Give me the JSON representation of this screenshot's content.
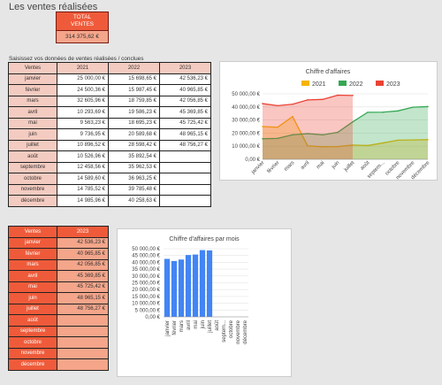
{
  "page": {
    "title": "Les ventes réalisées",
    "total_label_1": "TOTAL",
    "total_label_2": "VENTES",
    "total_value": "314 375,62 €",
    "subtitle": "Saisissez vos données de ventes réalisées / conclues"
  },
  "table1": {
    "headers": [
      "Ventes",
      "2021",
      "2022",
      "2023"
    ],
    "rows": [
      [
        "janvier",
        "25 000,00 €",
        "15 698,65 €",
        "42 536,23 €"
      ],
      [
        "février",
        "24 500,36 €",
        "15 987,45 €",
        "40 965,85 €"
      ],
      [
        "mars",
        "32 605,96 €",
        "18 759,85 €",
        "42 056,85 €"
      ],
      [
        "avril",
        "10 293,69 €",
        "19 586,23 €",
        "45 369,85 €"
      ],
      [
        "mai",
        "9 563,23 €",
        "18 695,23 €",
        "45 725,42 €"
      ],
      [
        "juin",
        "9 736,95 €",
        "20 589,68 €",
        "48 965,15 €"
      ],
      [
        "juillet",
        "10 896,52 €",
        "28 598,42 €",
        "48 756,27 €"
      ],
      [
        "août",
        "10 526,96 €",
        "35 892,54 €",
        ""
      ],
      [
        "septembre",
        "12 458,56 €",
        "35 962,53 €",
        ""
      ],
      [
        "octobre",
        "14 589,60 €",
        "36 963,25 €",
        ""
      ],
      [
        "novembre",
        "14 785,52 €",
        "39 785,48 €",
        ""
      ],
      [
        "décembre",
        "14 985,96 €",
        "40 258,63 €",
        ""
      ]
    ]
  },
  "table2": {
    "headers": [
      "Ventes",
      "2023"
    ],
    "rows": [
      [
        "janvier",
        "42 536,23 €"
      ],
      [
        "février",
        "40 965,85 €"
      ],
      [
        "mars",
        "42 056,85 €"
      ],
      [
        "avril",
        "45 369,85 €"
      ],
      [
        "mai",
        "45 725,42 €"
      ],
      [
        "juin",
        "48 965,15 €"
      ],
      [
        "juillet",
        "48 756,27 €"
      ],
      [
        "août",
        ""
      ],
      [
        "septembre",
        ""
      ],
      [
        "octobre",
        ""
      ],
      [
        "novembre",
        ""
      ],
      [
        "décembre",
        ""
      ]
    ]
  },
  "chart_data": [
    {
      "type": "area",
      "title": "Chiffre d'affaires",
      "categories": [
        "janvier",
        "février",
        "mars",
        "avril",
        "mai",
        "juin",
        "juillet",
        "août",
        "septem...",
        "octobre",
        "novembre",
        "décembre"
      ],
      "ylim": [
        0,
        50000
      ],
      "yticks": [
        "0,00 €",
        "10 000,00 €",
        "20 000,00 €",
        "30 000,00 €",
        "40 000,00 €",
        "50 000,00 €"
      ],
      "legend_position": "top",
      "series": [
        {
          "name": "2021",
          "color": "#f4b400",
          "values": [
            25000.0,
            24500.36,
            32605.96,
            10293.69,
            9563.23,
            9736.95,
            10896.52,
            10526.96,
            12458.56,
            14589.6,
            14785.52,
            14985.96
          ]
        },
        {
          "name": "2022",
          "color": "#34a853",
          "values": [
            15698.65,
            15987.45,
            18759.85,
            19586.23,
            18695.23,
            20589.68,
            28598.42,
            35892.54,
            35962.53,
            36963.25,
            39785.48,
            40258.63
          ]
        },
        {
          "name": "2023",
          "color": "#ea4335",
          "values": [
            42536.23,
            40965.85,
            42056.85,
            45369.85,
            45725.42,
            48965.15,
            48756.27,
            null,
            null,
            null,
            null,
            null
          ]
        }
      ]
    },
    {
      "type": "bar",
      "title": "Chiffre d'affaires par mois",
      "categories": [
        "janvier",
        "février",
        "mars",
        "avril",
        "mai",
        "juin",
        "juillet",
        "août",
        "septem...",
        "octobre",
        "novembre",
        "décembre"
      ],
      "ylim": [
        0,
        50000
      ],
      "yticks": [
        "0,00 €",
        "5 000,00 €",
        "10 000,00 €",
        "15 000,00 €",
        "20 000,00 €",
        "25 000,00 €",
        "30 000,00 €",
        "35 000,00 €",
        "40 000,00 €",
        "45 000,00 €",
        "50 000,00 €"
      ],
      "color": "#4285f4",
      "values": [
        42536.23,
        40965.85,
        42056.85,
        45369.85,
        45725.42,
        48965.15,
        48756.27,
        null,
        null,
        null,
        null,
        null
      ]
    }
  ]
}
